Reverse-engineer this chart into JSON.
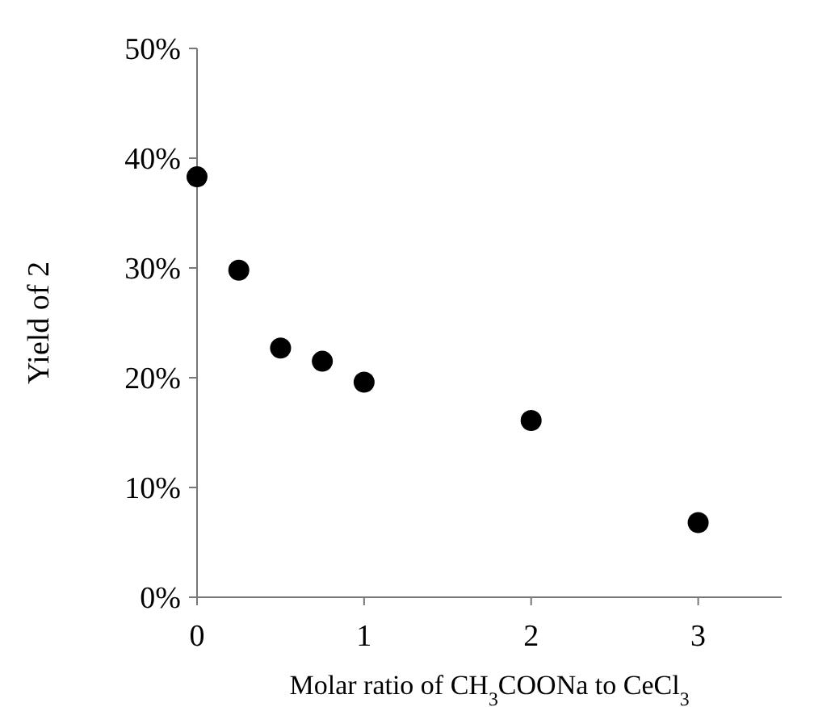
{
  "chart_data": {
    "type": "scatter",
    "xlabel": "Molar ratio of CH$_{3}$COONa to CeCl$_{3}$",
    "ylabel": "Yield of 2",
    "x": [
      0,
      0.25,
      0.5,
      0.75,
      1,
      2,
      3
    ],
    "series": [
      {
        "color": "#000000",
        "values": [
          38.3,
          29.8,
          22.7,
          21.5,
          19.6,
          16.1,
          6.8
        ]
      }
    ],
    "xlim": [
      0,
      3.5
    ],
    "xticks": [
      0,
      1,
      2,
      3
    ],
    "ylim": [
      0,
      50
    ],
    "yticks": [
      {
        "value": 0,
        "label": "0%"
      },
      {
        "value": 10,
        "label": "10%"
      },
      {
        "value": 20,
        "label": "20%"
      },
      {
        "value": 30,
        "label": "30%"
      },
      {
        "value": 40,
        "label": "40%"
      },
      {
        "value": 50,
        "label": "50%"
      }
    ],
    "grid": false,
    "marker": "circle"
  }
}
